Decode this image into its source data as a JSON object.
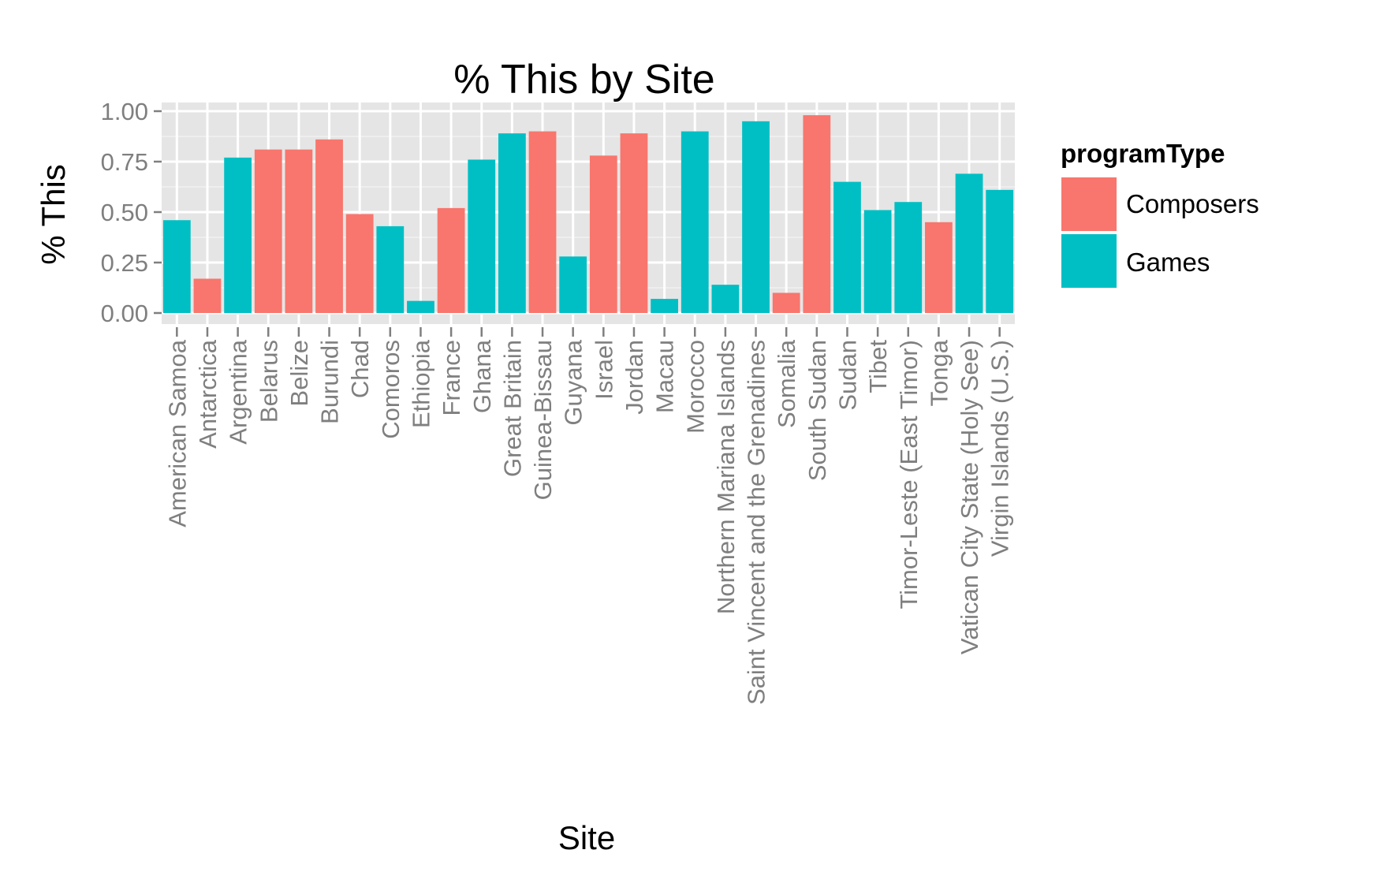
{
  "chart_data": {
    "type": "bar",
    "title": "% This by Site",
    "xlabel": "Site",
    "ylabel": "% This",
    "ylim": [
      0,
      1
    ],
    "yticks": [
      "0.00",
      "0.25",
      "0.50",
      "0.75",
      "1.00"
    ],
    "grid": true,
    "legend": {
      "title": "programType",
      "position": "right",
      "entries": [
        {
          "name": "Composers",
          "color": "#F8766D"
        },
        {
          "name": "Games",
          "color": "#00BFC4"
        }
      ]
    },
    "categories": [
      "American Samoa",
      "Antarctica",
      "Argentina",
      "Belarus",
      "Belize",
      "Burundi",
      "Chad",
      "Comoros",
      "Ethiopia",
      "France",
      "Ghana",
      "Great Britain",
      "Guinea-Bissau",
      "Guyana",
      "Israel",
      "Jordan",
      "Macau",
      "Morocco",
      "Northern Mariana Islands",
      "Saint Vincent and the Grenadines",
      "Somalia",
      "South Sudan",
      "Sudan",
      "Tibet",
      "Timor-Leste (East Timor)",
      "Tonga",
      "Vatican City State (Holy See)",
      "Virgin Islands (U.S.)"
    ],
    "values": [
      0.46,
      0.17,
      0.77,
      0.81,
      0.81,
      0.86,
      0.49,
      0.43,
      0.06,
      0.52,
      0.76,
      0.89,
      0.9,
      0.28,
      0.78,
      0.89,
      0.07,
      0.9,
      0.14,
      0.95,
      0.1,
      0.98,
      0.65,
      0.51,
      0.55,
      0.45,
      0.69,
      0.61
    ],
    "program_type": [
      "Games",
      "Composers",
      "Games",
      "Composers",
      "Composers",
      "Composers",
      "Composers",
      "Games",
      "Games",
      "Composers",
      "Games",
      "Games",
      "Composers",
      "Games",
      "Composers",
      "Composers",
      "Games",
      "Games",
      "Games",
      "Games",
      "Composers",
      "Composers",
      "Games",
      "Games",
      "Games",
      "Composers",
      "Games",
      "Games"
    ]
  },
  "colors": {
    "panel_background": "#E5E5E5",
    "grid_major": "#FFFFFF",
    "grid_minor": "#F2F2F2",
    "tick_text": "#7F7F7F"
  }
}
